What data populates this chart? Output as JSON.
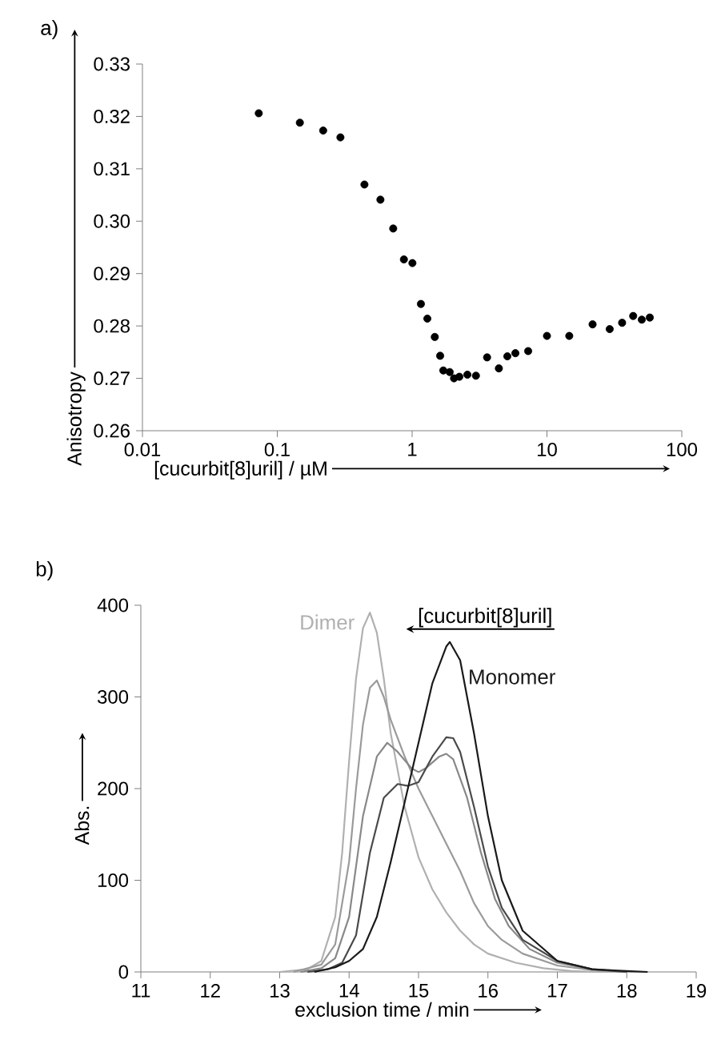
{
  "chart_data": [
    {
      "type": "scatter",
      "title": "a)",
      "xlabel": "[cucurbit[8]uril] / µM",
      "ylabel": "Anisotropy",
      "log": "x",
      "marker": "circle",
      "color": "#000000",
      "xlim": [
        0.01,
        100
      ],
      "ylim": [
        0.26,
        0.33
      ],
      "xticks": [
        0.01,
        0.1,
        1,
        10,
        100
      ],
      "yticks": [
        0.26,
        0.27,
        0.28,
        0.29,
        {
          "value": 0.3,
          "label": "0.30"
        },
        0.31,
        0.32,
        0.33
      ],
      "x": [
        0.0729,
        0.147,
        0.219,
        0.294,
        0.443,
        0.582,
        0.724,
        0.869,
        1.005,
        1.162,
        1.297,
        1.473,
        1.614,
        1.703,
        1.9,
        2.045,
        2.24,
        2.57,
        2.973,
        3.597,
        4.399,
        5.085,
        5.833,
        7.255,
        10.0,
        14.64,
        21.8,
        29.2,
        36.1,
        43.6,
        50.5,
        57.9
      ],
      "values": [
        0.3206,
        0.3188,
        0.3173,
        0.316,
        0.307,
        0.3041,
        0.2986,
        0.2927,
        0.292,
        0.2842,
        0.2814,
        0.2779,
        0.2743,
        0.2715,
        0.2712,
        0.27,
        0.2703,
        0.2707,
        0.2705,
        0.274,
        0.2719,
        0.2742,
        0.2748,
        0.2752,
        0.2781,
        0.2781,
        0.2803,
        0.2794,
        0.2806,
        0.2819,
        0.2812,
        0.2816
      ]
    },
    {
      "type": "line",
      "title": "b)",
      "xlabel": "exclusion time / min",
      "ylabel": "Abs.",
      "marker": "none",
      "line_style": "solid",
      "xlim": [
        11,
        19
      ],
      "ylim": [
        0,
        400
      ],
      "xticks": [
        11,
        12,
        13,
        14,
        15,
        16,
        17,
        18,
        19
      ],
      "yticks": [
        0,
        100,
        200,
        300,
        400
      ],
      "annotations": [
        "[cucurbit[8]uril]"
      ],
      "series": [
        {
          "name": "Dimer",
          "color": "#b0b0b0",
          "x": [
            13.0,
            13.4,
            13.6,
            13.8,
            13.9,
            14.0,
            14.1,
            14.2,
            14.3,
            14.4,
            14.5,
            14.6,
            14.8,
            15.0,
            15.2,
            15.4,
            15.6,
            15.8,
            16.0,
            16.4,
            16.8,
            17.2,
            17.6,
            18.3
          ],
          "values": [
            0,
            3,
            12,
            60,
            130,
            230,
            320,
            375,
            392,
            370,
            320,
            260,
            180,
            125,
            90,
            65,
            45,
            30,
            20,
            10,
            4,
            1,
            0,
            0
          ]
        },
        {
          "color": "#9a9a9a",
          "x": [
            13.2,
            13.6,
            13.8,
            14.0,
            14.1,
            14.2,
            14.3,
            14.4,
            14.5,
            14.6,
            14.8,
            15.0,
            15.2,
            15.4,
            15.6,
            15.8,
            16.0,
            16.2,
            16.5,
            17.0,
            17.5,
            18.0
          ],
          "values": [
            0,
            8,
            30,
            120,
            200,
            270,
            310,
            318,
            300,
            275,
            235,
            200,
            170,
            140,
            110,
            75,
            50,
            35,
            20,
            7,
            2,
            0
          ]
        },
        {
          "color": "#888888",
          "x": [
            13.3,
            13.6,
            13.8,
            14.0,
            14.2,
            14.4,
            14.55,
            14.7,
            14.9,
            15.0,
            15.1,
            15.3,
            15.4,
            15.5,
            15.7,
            15.9,
            16.1,
            16.3,
            16.6,
            17.0,
            17.5,
            18.0
          ],
          "values": [
            0,
            4,
            15,
            60,
            170,
            235,
            250,
            240,
            222,
            218,
            222,
            235,
            238,
            232,
            190,
            130,
            80,
            50,
            25,
            10,
            3,
            0
          ]
        },
        {
          "color": "#4a4a4a",
          "x": [
            13.4,
            13.7,
            13.9,
            14.1,
            14.3,
            14.5,
            14.7,
            14.85,
            15.0,
            15.2,
            15.4,
            15.5,
            15.6,
            15.8,
            16.0,
            16.2,
            16.5,
            17.0,
            17.5,
            18.0
          ],
          "values": [
            0,
            3,
            10,
            40,
            130,
            190,
            205,
            203,
            207,
            235,
            256,
            255,
            240,
            180,
            115,
            70,
            35,
            12,
            3,
            0
          ]
        },
        {
          "name": "Monomer",
          "color": "#1a1a1a",
          "x": [
            13.5,
            13.8,
            14.0,
            14.2,
            14.4,
            14.6,
            14.8,
            15.0,
            15.2,
            15.4,
            15.45,
            15.6,
            15.8,
            16.0,
            16.2,
            16.5,
            17.0,
            17.5,
            18.0,
            18.3
          ],
          "values": [
            0,
            5,
            12,
            25,
            60,
            120,
            185,
            250,
            315,
            355,
            360,
            340,
            260,
            170,
            100,
            45,
            12,
            3,
            1,
            0
          ]
        }
      ]
    }
  ]
}
